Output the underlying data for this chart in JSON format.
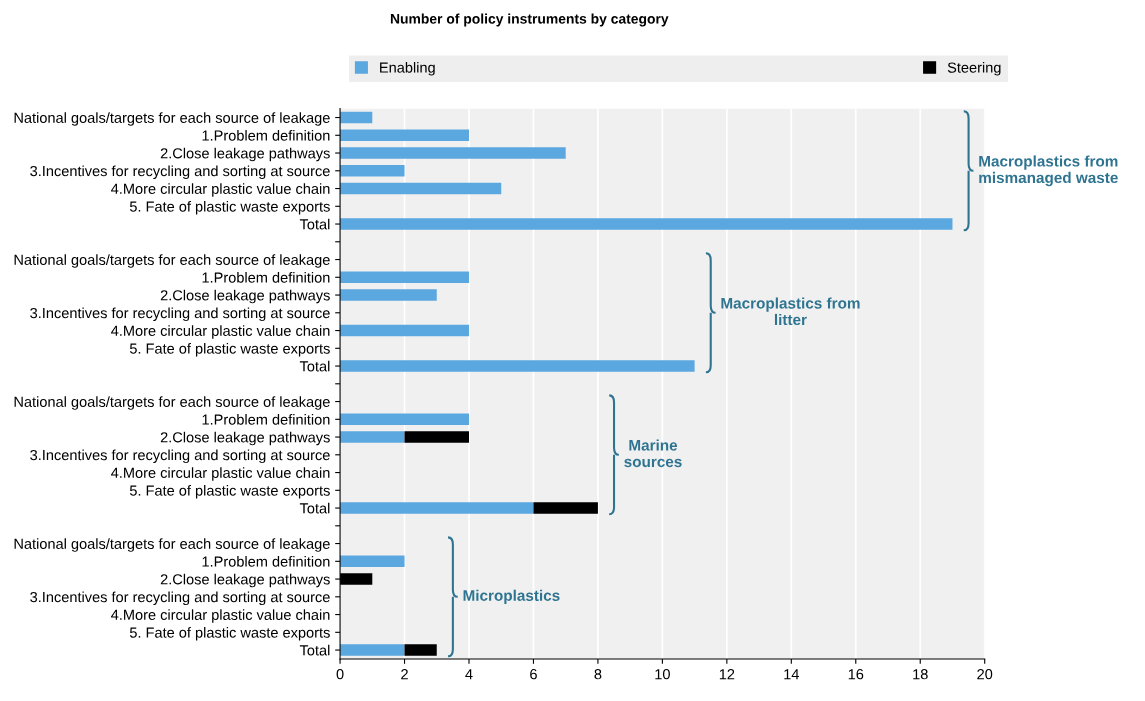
{
  "chart_data": {
    "type": "bar",
    "orientation": "horizontal",
    "stacked": true,
    "title": "Number of policy instruments by category",
    "categories": [
      "National goals/targets for each source of leakage",
      "1.Problem definition",
      "2.Close leakage pathways",
      "3.Incentives for recycling and sorting at source",
      "4.More circular plastic value chain",
      "5. Fate of plastic waste exports",
      "Total",
      null,
      "National goals/targets for each source of leakage",
      "1.Problem definition",
      "2.Close leakage pathways",
      "3.Incentives for recycling and sorting at source",
      "4.More circular plastic value chain",
      "5. Fate of plastic waste exports",
      "Total",
      null,
      "National goals/targets for each source of leakage",
      "1.Problem definition",
      "2.Close leakage pathways",
      "3.Incentives for recycling and sorting at source",
      "4.More circular plastic value chain",
      "5. Fate of plastic waste exports",
      "Total",
      null,
      "National goals/targets for each source of leakage",
      "1.Problem definition",
      "2.Close leakage pathways",
      "3.Incentives for recycling and sorting at source",
      "4.More circular plastic value chain",
      "5. Fate of plastic waste exports",
      "Total"
    ],
    "series": [
      {
        "name": "Enabling",
        "color": "#5ba8e0",
        "values": [
          1,
          4,
          7,
          2,
          5,
          0,
          19,
          null,
          0,
          4,
          3,
          0,
          4,
          0,
          11,
          null,
          0,
          4,
          2,
          0,
          0,
          0,
          6,
          null,
          0,
          2,
          0,
          0,
          0,
          0,
          2
        ]
      },
      {
        "name": "Steering",
        "color": "#000000",
        "values": [
          0,
          0,
          0,
          0,
          0,
          0,
          0,
          null,
          0,
          0,
          0,
          0,
          0,
          0,
          0,
          null,
          0,
          0,
          2,
          0,
          0,
          0,
          2,
          null,
          0,
          0,
          1,
          0,
          0,
          0,
          1
        ]
      }
    ],
    "annotations": [
      "Macroplastics from\nmismanaged waste",
      "Macroplastics from\nlitter",
      "Marine\nsources",
      "Microplastics"
    ],
    "xlim": [
      0,
      20
    ],
    "xticks": [
      0,
      2,
      4,
      6,
      8,
      10,
      12,
      14,
      16,
      18,
      20
    ],
    "grid": "x",
    "legend": "top"
  }
}
